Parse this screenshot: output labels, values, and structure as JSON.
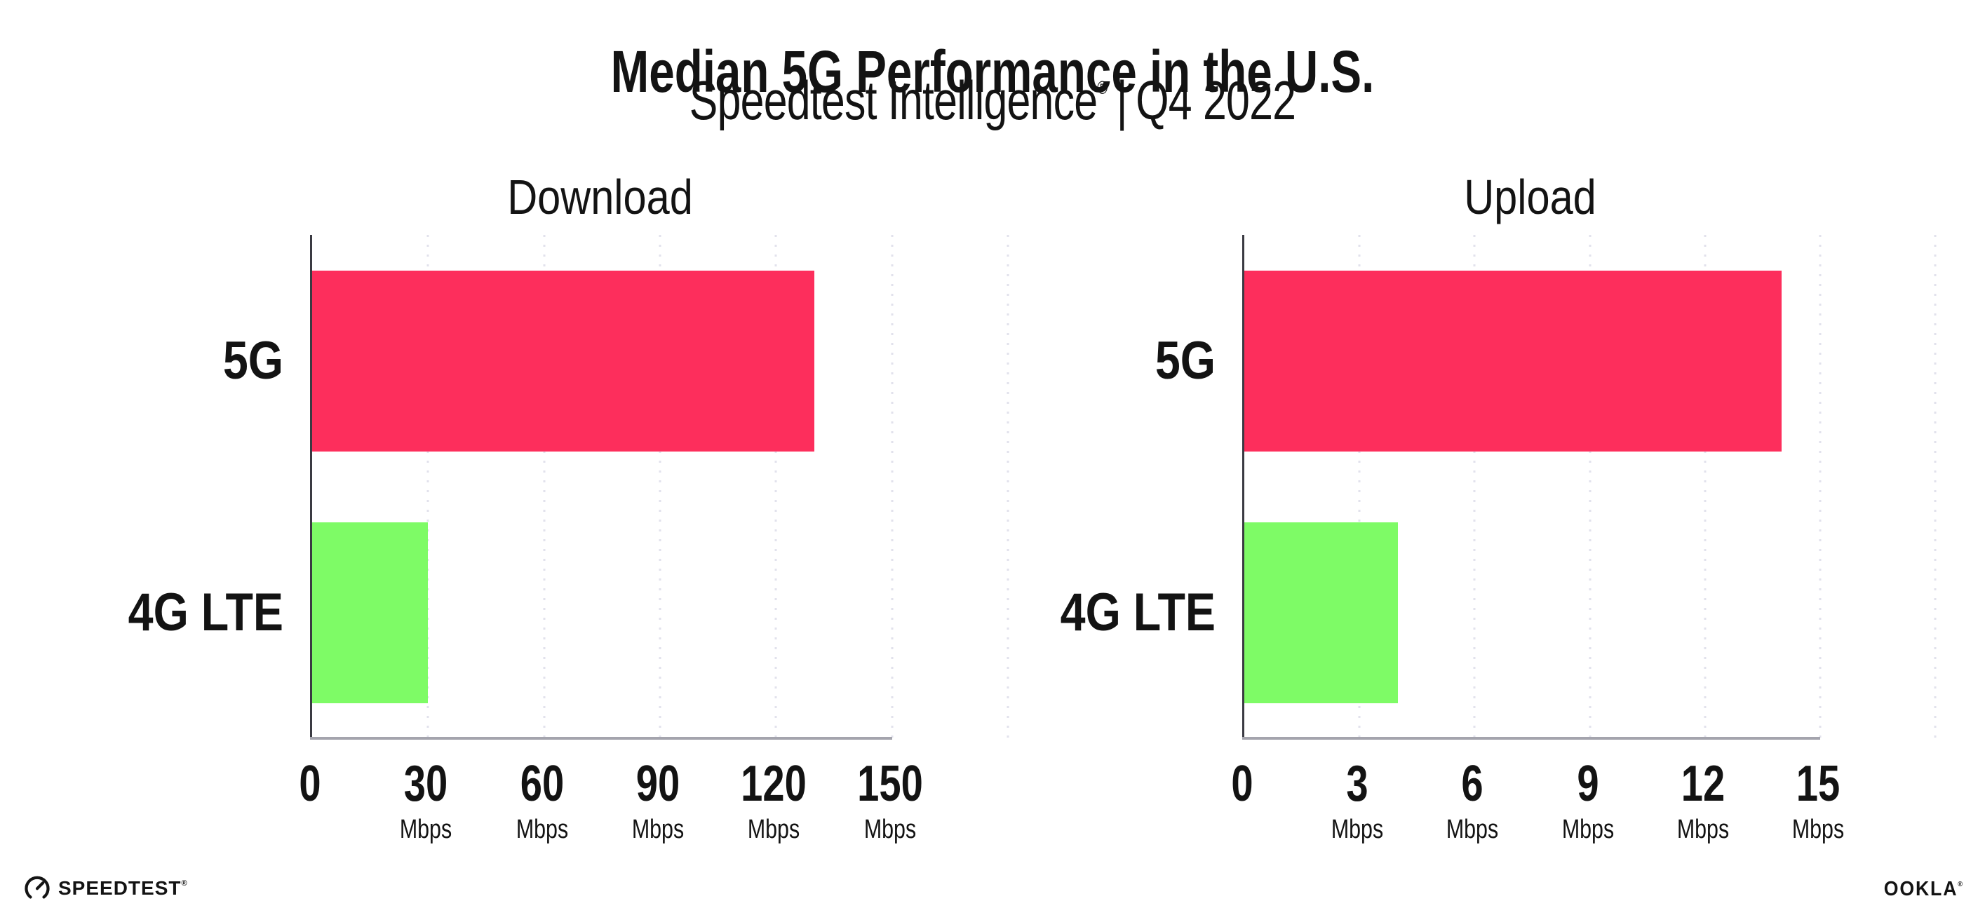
{
  "header": {
    "title": "Median 5G Performance in the U.S.",
    "subtitle": {
      "brand": "Speedtest Intelligence",
      "mark": "®",
      "divider": "|",
      "quarter": "Q4 2022"
    }
  },
  "chart_data": [
    {
      "type": "bar",
      "orientation": "horizontal",
      "title": "Download",
      "categories": [
        "5G",
        "4G LTE"
      ],
      "values": [
        130,
        30
      ],
      "unit": "Mbps",
      "xlabel": "",
      "ylabel": "",
      "xlim": [
        0,
        150
      ],
      "xlim_display": [
        0,
        180
      ],
      "xticks": [
        0,
        30,
        60,
        90,
        120,
        150
      ],
      "bar_colors": [
        "#FD2E5C",
        "#7EFB66"
      ],
      "grid": "dotted-vertical",
      "legend": "none"
    },
    {
      "type": "bar",
      "orientation": "horizontal",
      "title": "Upload",
      "categories": [
        "5G",
        "4G LTE"
      ],
      "values": [
        14,
        4
      ],
      "unit": "Mbps",
      "xlabel": "",
      "ylabel": "",
      "xlim": [
        0,
        15
      ],
      "xlim_display": [
        0,
        18
      ],
      "xticks": [
        0,
        3,
        6,
        9,
        12,
        15
      ],
      "bar_colors": [
        "#FD2E5C",
        "#7EFB66"
      ],
      "grid": "dotted-vertical",
      "legend": "none"
    }
  ],
  "footer": {
    "speedtest_label": "SPEEDTEST",
    "speedtest_mark": "®",
    "ookla_label": "OOKLA",
    "ookla_mark": "®"
  },
  "colors": {
    "bar_5g": "#FD2E5C",
    "bar_4g_lte": "#7EFB66",
    "x_axis_line": "#a4a4ad",
    "y_axis_line": "#3a3a42",
    "gridline": "#e2e2ec",
    "text": "#131313",
    "background": "#ffffff"
  }
}
